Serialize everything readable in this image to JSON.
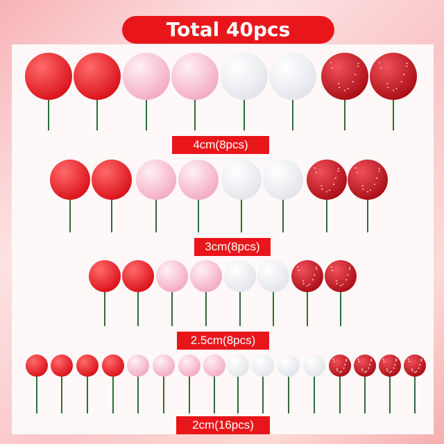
{
  "title": "Total 40pcs",
  "colors": {
    "accent": "#e8161b",
    "red": "#e0141c",
    "pink": "#f7bccd",
    "white": "#f4f4f6",
    "glitter": "#c0101a",
    "stem": "#2f6b3a"
  },
  "rows": [
    {
      "label": "4cm(8pcs)",
      "balls": [
        "red",
        "red",
        "pink",
        "pink",
        "white",
        "white",
        "glitter",
        "glitter"
      ]
    },
    {
      "label": "3cm(8pcs)",
      "balls": [
        "red",
        "red",
        "pink",
        "pink",
        "white",
        "white",
        "glitter",
        "glitter"
      ]
    },
    {
      "label": "2.5cm(8pcs)",
      "balls": [
        "red",
        "red",
        "pink",
        "pink",
        "white",
        "white",
        "glitter",
        "glitter"
      ]
    },
    {
      "label": "2cm(16pcs)",
      "balls": [
        "red",
        "red",
        "red",
        "red",
        "pink",
        "pink",
        "pink",
        "pink",
        "white",
        "white",
        "white",
        "white",
        "glitter",
        "glitter",
        "glitter",
        "glitter"
      ]
    }
  ]
}
